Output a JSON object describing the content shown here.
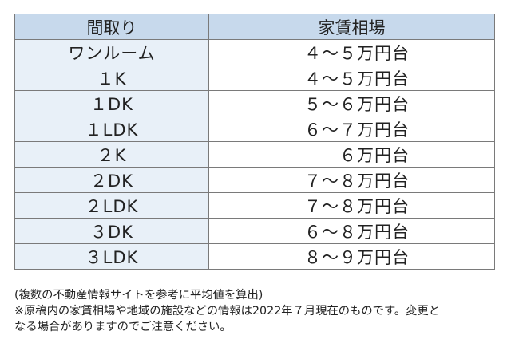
{
  "table": {
    "headers": [
      "間取り",
      "家賃相場"
    ],
    "rows": [
      {
        "layout": "ワンルーム",
        "rent": "４～５万円台"
      },
      {
        "layout": "１K",
        "rent": "４～５万円台"
      },
      {
        "layout": "１DK",
        "rent": "５～６万円台"
      },
      {
        "layout": "１LDK",
        "rent": "６～７万円台"
      },
      {
        "layout": "２K",
        "rent": "６万円台"
      },
      {
        "layout": "２DK",
        "rent": "７～８万円台"
      },
      {
        "layout": "２LDK",
        "rent": "７～８万円台"
      },
      {
        "layout": "３DK",
        "rent": "６～８万円台"
      },
      {
        "layout": "３LDK",
        "rent": "８～９万円台"
      }
    ]
  },
  "notes": {
    "line1": "(複数の不動産情報サイトを参考に平均値を算出)",
    "line2": "※原稿内の家賃相場や地域の施設などの情報は2022年７月現在のものです。変更と",
    "line3": "なる場合がありますのでご注意ください。"
  }
}
